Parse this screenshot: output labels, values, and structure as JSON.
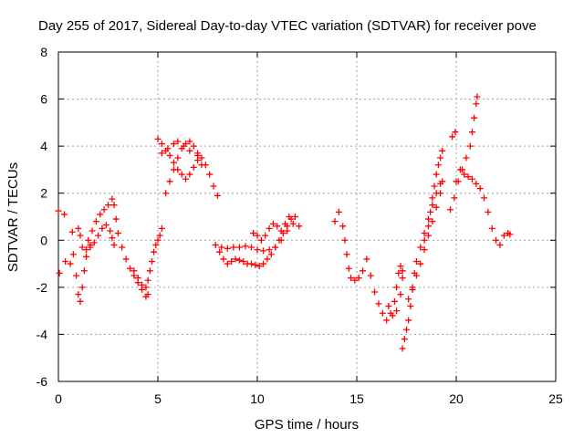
{
  "chart_data": {
    "type": "scatter",
    "title": "Day 255 of 2017, Sidereal Day-to-day VTEC variation (SDTVAR) for receiver pove",
    "xlabel": "GPS time / hours",
    "ylabel": "SDTVAR / TECUs",
    "xlim": [
      0,
      25
    ],
    "ylim": [
      -6,
      8
    ],
    "xticks": [
      0,
      5,
      10,
      15,
      20,
      25
    ],
    "yticks": [
      -6,
      -4,
      -2,
      0,
      2,
      4,
      6,
      8
    ],
    "grid": true,
    "marker": "+",
    "color": "#ff0000",
    "series": [
      {
        "name": "SDTVAR",
        "points": [
          [
            0.0,
            1.25
          ],
          [
            0.05,
            -1.4
          ],
          [
            0.3,
            1.1
          ],
          [
            0.35,
            -0.9
          ],
          [
            0.6,
            -1.0
          ],
          [
            0.7,
            0.35
          ],
          [
            0.75,
            -0.6
          ],
          [
            0.9,
            -1.5
          ],
          [
            1.0,
            -2.3
          ],
          [
            1.1,
            -2.6
          ],
          [
            1.2,
            -2.0
          ],
          [
            1.3,
            -1.3
          ],
          [
            1.4,
            -0.7
          ],
          [
            1.6,
            -0.2
          ],
          [
            1.0,
            0.5
          ],
          [
            1.1,
            0.2
          ],
          [
            1.2,
            -0.3
          ],
          [
            1.4,
            -0.4
          ],
          [
            1.6,
            -0.3
          ],
          [
            1.8,
            -0.1
          ],
          [
            2.0,
            0.2
          ],
          [
            2.2,
            0.5
          ],
          [
            2.4,
            0.65
          ],
          [
            2.6,
            0.4
          ],
          [
            2.7,
            0.1
          ],
          [
            2.8,
            -0.2
          ],
          [
            1.5,
            0.0
          ],
          [
            1.7,
            0.4
          ],
          [
            1.9,
            0.8
          ],
          [
            2.1,
            1.1
          ],
          [
            2.3,
            1.3
          ],
          [
            2.5,
            1.5
          ],
          [
            2.7,
            1.75
          ],
          [
            2.8,
            1.5
          ],
          [
            2.9,
            0.9
          ],
          [
            3.0,
            0.3
          ],
          [
            3.2,
            -0.3
          ],
          [
            3.4,
            -0.8
          ],
          [
            3.6,
            -1.2
          ],
          [
            3.8,
            -1.5
          ],
          [
            4.0,
            -1.8
          ],
          [
            4.2,
            -2.1
          ],
          [
            4.4,
            -2.4
          ],
          [
            4.5,
            -2.3
          ],
          [
            3.8,
            -1.3
          ],
          [
            4.0,
            -1.6
          ],
          [
            4.2,
            -1.9
          ],
          [
            4.4,
            -2.0
          ],
          [
            4.5,
            -1.7
          ],
          [
            4.6,
            -1.3
          ],
          [
            4.7,
            -0.9
          ],
          [
            4.8,
            -0.5
          ],
          [
            4.9,
            -0.2
          ],
          [
            5.0,
            0.0
          ],
          [
            5.1,
            0.2
          ],
          [
            5.2,
            0.5
          ],
          [
            5.0,
            4.3
          ],
          [
            5.2,
            4.1
          ],
          [
            5.4,
            3.8
          ],
          [
            5.6,
            3.6
          ],
          [
            5.8,
            3.3
          ],
          [
            6.0,
            3.0
          ],
          [
            6.2,
            2.8
          ],
          [
            6.4,
            2.6
          ],
          [
            6.6,
            2.8
          ],
          [
            6.8,
            3.1
          ],
          [
            7.0,
            3.4
          ],
          [
            7.2,
            3.2
          ],
          [
            5.4,
            2.0
          ],
          [
            5.6,
            2.5
          ],
          [
            5.8,
            3.0
          ],
          [
            6.0,
            3.5
          ],
          [
            6.2,
            3.9
          ],
          [
            6.4,
            4.1
          ],
          [
            6.6,
            4.2
          ],
          [
            6.8,
            4.0
          ],
          [
            7.0,
            3.7
          ],
          [
            7.2,
            3.5
          ],
          [
            7.4,
            3.2
          ],
          [
            7.6,
            2.8
          ],
          [
            7.8,
            2.3
          ],
          [
            8.0,
            1.9
          ],
          [
            5.2,
            3.7
          ],
          [
            5.5,
            3.9
          ],
          [
            5.8,
            4.1
          ],
          [
            6.0,
            4.2
          ],
          [
            6.3,
            4.0
          ],
          [
            6.6,
            3.8
          ],
          [
            7.0,
            3.6
          ],
          [
            7.9,
            -0.2
          ],
          [
            8.2,
            -0.3
          ],
          [
            8.5,
            -0.35
          ],
          [
            8.8,
            -0.3
          ],
          [
            9.1,
            -0.3
          ],
          [
            9.4,
            -0.25
          ],
          [
            9.7,
            -0.3
          ],
          [
            10.0,
            -0.4
          ],
          [
            10.3,
            -0.45
          ],
          [
            10.6,
            -0.4
          ],
          [
            10.9,
            -0.3
          ],
          [
            11.2,
            0.0
          ],
          [
            11.5,
            0.4
          ],
          [
            11.8,
            0.7
          ],
          [
            12.1,
            0.6
          ],
          [
            8.1,
            -0.5
          ],
          [
            8.3,
            -0.8
          ],
          [
            8.5,
            -1.0
          ],
          [
            8.7,
            -0.9
          ],
          [
            8.9,
            -0.8
          ],
          [
            9.1,
            -0.85
          ],
          [
            9.3,
            -0.9
          ],
          [
            9.5,
            -1.0
          ],
          [
            9.7,
            -1.0
          ],
          [
            9.9,
            -1.05
          ],
          [
            10.1,
            -1.1
          ],
          [
            10.3,
            -1.0
          ],
          [
            10.5,
            -0.8
          ],
          [
            10.7,
            -0.6
          ],
          [
            10.9,
            -0.3
          ],
          [
            11.1,
            0.0
          ],
          [
            11.3,
            0.3
          ],
          [
            11.5,
            0.6
          ],
          [
            11.7,
            0.9
          ],
          [
            11.9,
            1.0
          ],
          [
            9.8,
            0.3
          ],
          [
            10.0,
            0.2
          ],
          [
            10.2,
            0.0
          ],
          [
            10.4,
            0.2
          ],
          [
            10.6,
            0.5
          ],
          [
            10.8,
            0.7
          ],
          [
            11.0,
            0.6
          ],
          [
            11.2,
            0.4
          ],
          [
            11.4,
            0.7
          ],
          [
            11.6,
            1.0
          ],
          [
            13.9,
            0.8
          ],
          [
            14.1,
            1.2
          ],
          [
            14.3,
            0.6
          ],
          [
            14.4,
            0.0
          ],
          [
            14.5,
            -0.6
          ],
          [
            14.6,
            -1.2
          ],
          [
            14.7,
            -1.6
          ],
          [
            14.9,
            -1.7
          ],
          [
            15.1,
            -1.6
          ],
          [
            15.3,
            -1.3
          ],
          [
            15.5,
            -0.8
          ],
          [
            15.7,
            -1.5
          ],
          [
            15.9,
            -2.2
          ],
          [
            16.1,
            -2.7
          ],
          [
            16.3,
            -3.1
          ],
          [
            16.5,
            -3.4
          ],
          [
            16.7,
            -3.1
          ],
          [
            16.9,
            -2.6
          ],
          [
            17.0,
            -2.0
          ],
          [
            17.1,
            -1.4
          ],
          [
            17.2,
            -1.1
          ],
          [
            17.3,
            -1.3
          ],
          [
            16.6,
            -2.8
          ],
          [
            16.8,
            -3.2
          ],
          [
            17.0,
            -3.0
          ],
          [
            17.2,
            -2.3
          ],
          [
            17.3,
            -1.6
          ],
          [
            17.3,
            -4.6
          ],
          [
            17.4,
            -4.2
          ],
          [
            17.5,
            -3.8
          ],
          [
            17.6,
            -3.4
          ],
          [
            17.7,
            -2.8
          ],
          [
            17.8,
            -2.1
          ],
          [
            17.9,
            -1.4
          ],
          [
            18.0,
            -0.9
          ],
          [
            18.2,
            -0.3
          ],
          [
            18.4,
            0.3
          ],
          [
            18.6,
            0.9
          ],
          [
            18.8,
            1.5
          ],
          [
            19.0,
            2.0
          ],
          [
            19.2,
            2.4
          ],
          [
            17.6,
            -2.5
          ],
          [
            17.8,
            -2.0
          ],
          [
            18.0,
            -1.5
          ],
          [
            18.2,
            -1.0
          ],
          [
            18.4,
            -0.4
          ],
          [
            18.6,
            0.2
          ],
          [
            18.8,
            0.8
          ],
          [
            19.0,
            1.4
          ],
          [
            19.2,
            2.0
          ],
          [
            19.3,
            2.5
          ],
          [
            18.4,
            0.0
          ],
          [
            18.6,
            0.6
          ],
          [
            18.7,
            1.2
          ],
          [
            18.8,
            1.8
          ],
          [
            18.9,
            2.3
          ],
          [
            19.0,
            2.8
          ],
          [
            19.1,
            3.2
          ],
          [
            19.2,
            3.5
          ],
          [
            19.3,
            3.8
          ],
          [
            19.8,
            4.4
          ],
          [
            19.95,
            4.6
          ],
          [
            19.7,
            1.3
          ],
          [
            19.9,
            1.8
          ],
          [
            20.1,
            2.5
          ],
          [
            20.3,
            3.0
          ],
          [
            20.5,
            3.5
          ],
          [
            20.7,
            4.0
          ],
          [
            20.8,
            4.6
          ],
          [
            20.9,
            5.2
          ],
          [
            21.0,
            5.8
          ],
          [
            21.05,
            6.1
          ],
          [
            20.0,
            2.5
          ],
          [
            20.2,
            3.0
          ],
          [
            20.4,
            2.8
          ],
          [
            20.6,
            2.7
          ],
          [
            20.8,
            2.6
          ],
          [
            21.0,
            2.4
          ],
          [
            21.2,
            2.2
          ],
          [
            21.4,
            1.8
          ],
          [
            21.6,
            1.2
          ],
          [
            21.8,
            0.5
          ],
          [
            22.0,
            0.0
          ],
          [
            22.2,
            -0.2
          ],
          [
            22.4,
            0.2
          ],
          [
            22.6,
            0.3
          ],
          [
            22.7,
            0.25
          ]
        ]
      }
    ]
  }
}
